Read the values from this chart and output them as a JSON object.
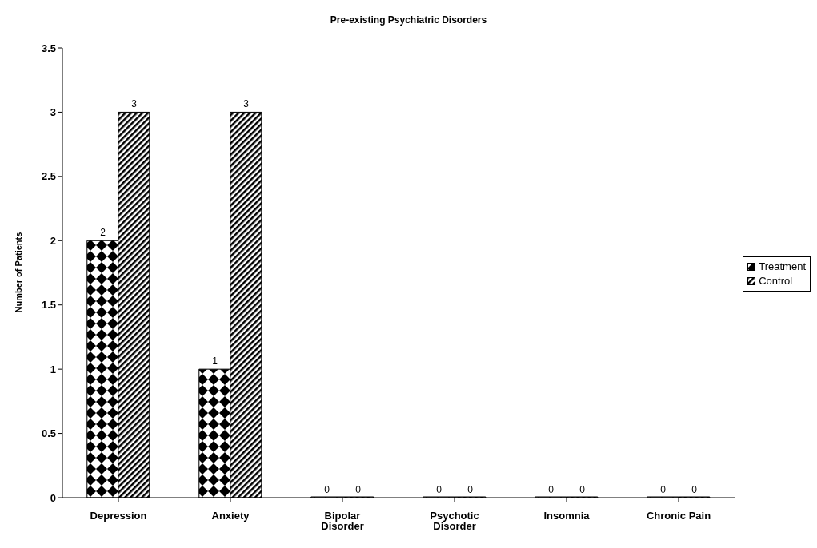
{
  "chart_data": {
    "type": "bar",
    "title": "Pre-existing Psychiatric Disorders",
    "ylabel": "Number of Patients",
    "categories": [
      "Depression",
      "Anxiety",
      "Bipolar Disorder",
      "Psychotic Disorder",
      "Insomnia",
      "Chronic Pain"
    ],
    "series": [
      {
        "name": "Treatment",
        "color": "#000000",
        "values": [
          2,
          1,
          0,
          0,
          0,
          0
        ]
      },
      {
        "name": "Control",
        "color": "#000000",
        "values": [
          3,
          3,
          0,
          0,
          0,
          0
        ]
      }
    ],
    "ylim": [
      0,
      3.5
    ],
    "yticks": [
      0,
      0.5,
      1,
      1.5,
      2,
      2.5,
      3,
      3.5
    ],
    "grid": false,
    "legend": "right",
    "data_labels": true
  }
}
